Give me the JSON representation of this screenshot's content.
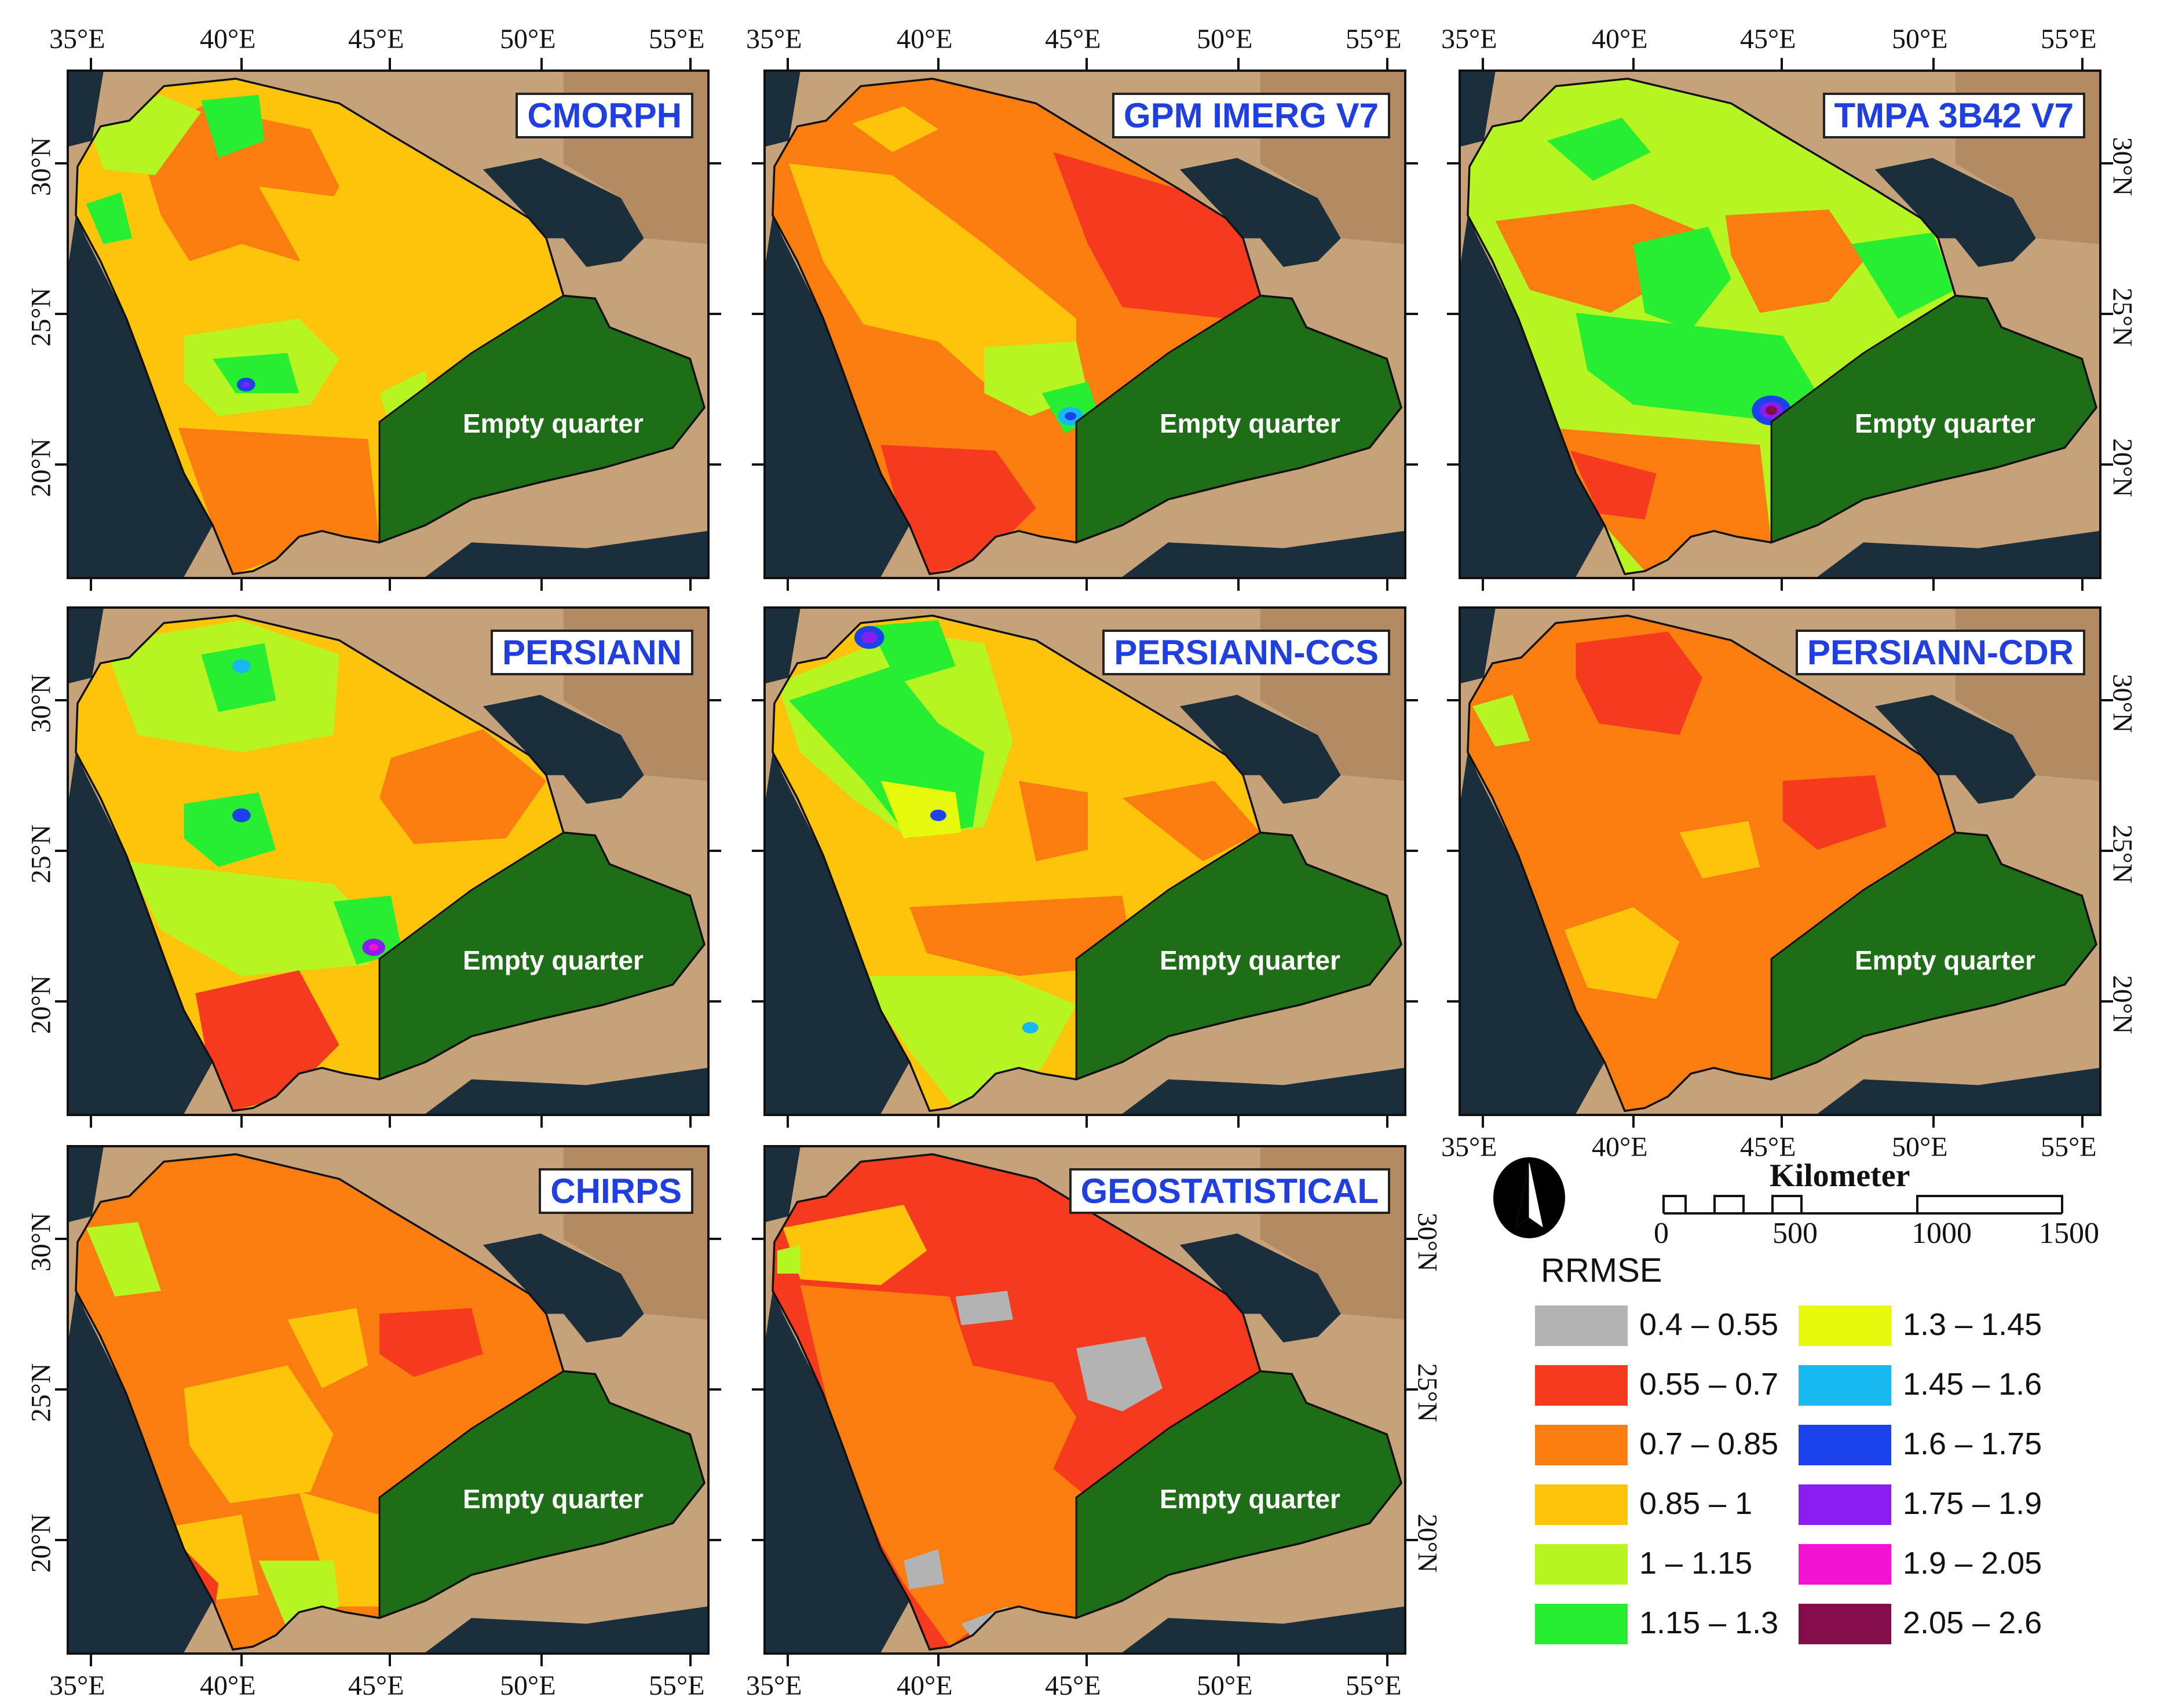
{
  "panels": [
    {
      "id": "cmorph",
      "title": "CMORPH",
      "label": "Empty quarter"
    },
    {
      "id": "gpm",
      "title": "GPM IMERG V7",
      "label": "Empty quarter"
    },
    {
      "id": "tmpa",
      "title": "TMPA 3B42 V7",
      "label": "Empty quarter"
    },
    {
      "id": "persiann",
      "title": "PERSIANN",
      "label": "Empty quarter"
    },
    {
      "id": "persiann_ccs",
      "title": "PERSIANN-CCS",
      "label": "Empty quarter"
    },
    {
      "id": "persiann_cdr",
      "title": "PERSIANN-CDR",
      "label": "Empty quarter"
    },
    {
      "id": "chirps",
      "title": "CHIRPS",
      "label": "Empty quarter"
    },
    {
      "id": "geostatistical",
      "title": "GEOSTATISTICAL",
      "label": "Empty quarter"
    }
  ],
  "axes": {
    "lon_labels": [
      "35°E",
      "40°E",
      "45°E",
      "50°E",
      "55°E"
    ],
    "lat_labels": [
      "30°N",
      "25°N",
      "20°N"
    ]
  },
  "scale_bar": {
    "title": "Kilometer",
    "ticks": [
      "0",
      "500",
      "1000",
      "1500"
    ]
  },
  "legend": {
    "title": "RRMSE",
    "items": [
      {
        "label": "0.4 – 0.55",
        "color": "#b3b3b3"
      },
      {
        "label": "0.55 – 0.7",
        "color": "#f53a1e"
      },
      {
        "label": "0.7 – 0.85",
        "color": "#fa7d10"
      },
      {
        "label": "0.85 – 1",
        "color": "#fec40c"
      },
      {
        "label": "1 – 1.15",
        "color": "#b6f422"
      },
      {
        "label": "1.15 – 1.3",
        "color": "#27ee30"
      },
      {
        "label": "1.3 – 1.45",
        "color": "#e6fb0c"
      },
      {
        "label": "1.45 – 1.6",
        "color": "#18b8f0"
      },
      {
        "label": "1.6 – 1.75",
        "color": "#1c42ec"
      },
      {
        "label": "1.75 – 1.9",
        "color": "#8a1df0"
      },
      {
        "label": "1.9 – 2.05",
        "color": "#f413d2"
      },
      {
        "label": "2.05 – 2.6",
        "color": "#840c4a"
      }
    ]
  }
}
